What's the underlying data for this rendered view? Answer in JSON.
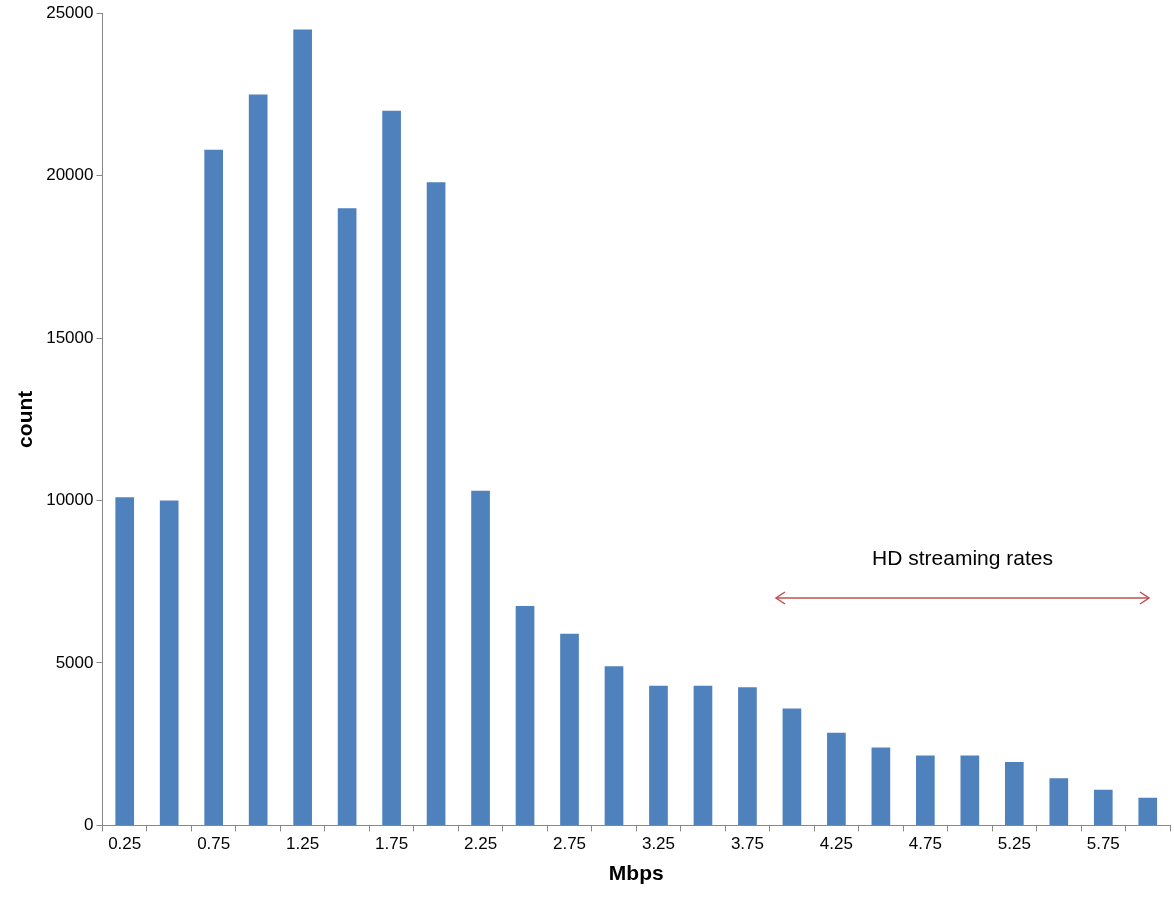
{
  "chart_data": {
    "type": "bar",
    "xlabel": "Mbps",
    "ylabel": "count",
    "categories": [
      "0.25",
      null,
      "0.75",
      null,
      "1.25",
      null,
      "1.75",
      null,
      "2.25",
      null,
      "2.75",
      null,
      "3.25",
      null,
      "3.75",
      null,
      "4.25",
      null,
      "4.75",
      null,
      "5.25",
      null,
      "5.75",
      null
    ],
    "values": [
      10100,
      10000,
      20800,
      22500,
      24500,
      19000,
      22000,
      19800,
      10300,
      6750,
      5900,
      4900,
      4300,
      4300,
      4250,
      3600,
      2850,
      2400,
      2150,
      2150,
      1950,
      1450,
      1100,
      850
    ],
    "color": "#4f81bd",
    "ylim": [
      0,
      25000
    ],
    "yticks": [
      0,
      5000,
      10000,
      15000,
      20000,
      25000
    ],
    "grid": false,
    "legend": false,
    "annotations": [
      "HD streaming rates"
    ]
  }
}
